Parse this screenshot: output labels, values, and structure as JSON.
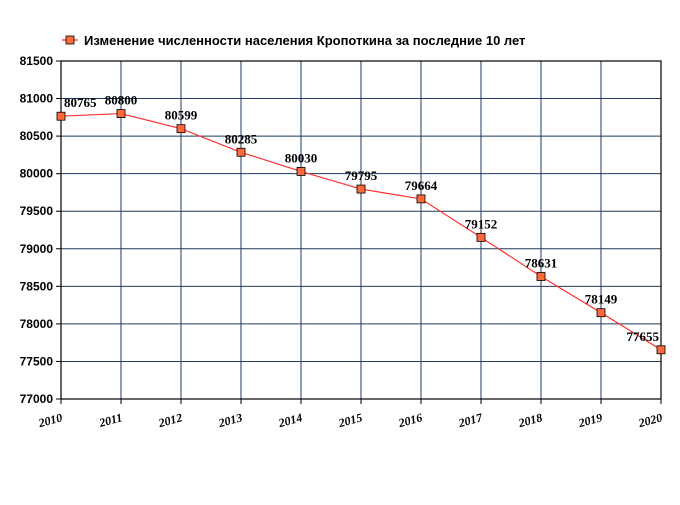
{
  "chart_data": {
    "type": "line",
    "legend": "Изменение численности населения Кропоткина за последние 10 лет",
    "legend_position": "top-left",
    "grid": true,
    "x": [
      2010,
      2011,
      2012,
      2013,
      2014,
      2015,
      2016,
      2017,
      2018,
      2019,
      2020
    ],
    "xticks": [
      "2010",
      "2011",
      "2012",
      "2013",
      "2014",
      "2015",
      "2016",
      "2017",
      "2018",
      "2019",
      "2020"
    ],
    "series": [
      {
        "name": "Изменение численности населения Кропоткина за последние 10 лет",
        "values": [
          80765,
          80800,
          80599,
          80285,
          80030,
          79795,
          79664,
          79152,
          78631,
          78149,
          77655
        ],
        "data_labels": [
          "80765",
          "80800",
          "80599",
          "80285",
          "80030",
          "79795",
          "79664",
          "79152",
          "78631",
          "78149",
          "77655"
        ]
      }
    ],
    "ylim": [
      77000,
      81500
    ],
    "yticks": [
      77000,
      77500,
      78000,
      78500,
      79000,
      79500,
      80000,
      80500,
      81000,
      81500
    ],
    "ytick_labels": [
      "77000",
      "77500",
      "78000",
      "78500",
      "79000",
      "79500",
      "80000",
      "80500",
      "81000",
      "81500"
    ],
    "xlabel": "",
    "ylabel": "",
    "colors": {
      "line": "#ff3333",
      "marker_fill": "#ff6a3d",
      "marker_stroke": "#000000",
      "grid": "#1e3a5f",
      "frame": "#000000"
    }
  }
}
